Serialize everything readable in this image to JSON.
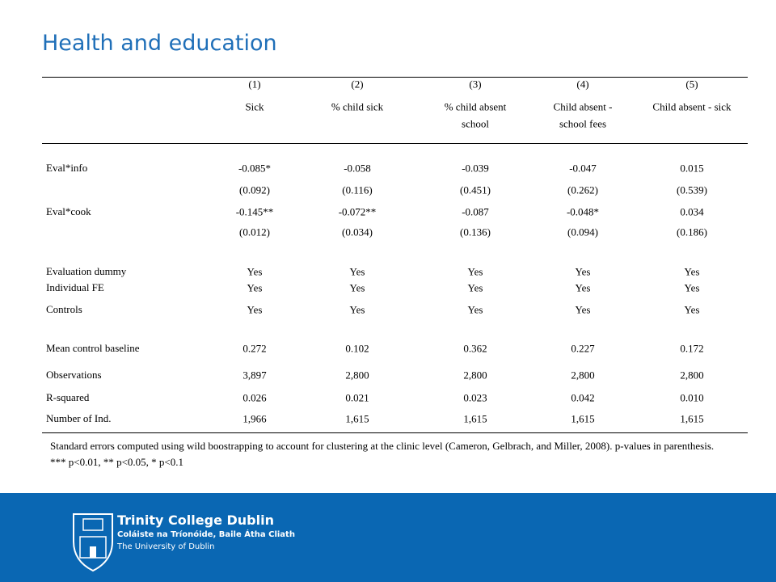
{
  "title": "Health and education",
  "table": {
    "columns": [
      {
        "number": "(1)",
        "name": [
          "Sick"
        ]
      },
      {
        "number": "(2)",
        "name": [
          "% child sick"
        ]
      },
      {
        "number": "(3)",
        "name": [
          "% child absent",
          "school"
        ]
      },
      {
        "number": "(4)",
        "name": [
          "Child absent -",
          "school fees"
        ]
      },
      {
        "number": "(5)",
        "name": [
          "Child absent - sick"
        ]
      }
    ],
    "rows": [
      {
        "label": "Eval*info",
        "cells": [
          "-0.085*",
          "-0.058",
          "-0.039",
          "-0.047",
          "0.015"
        ]
      },
      {
        "cells": [
          "(0.092)",
          "(0.116)",
          "(0.451)",
          "(0.262)",
          "(0.539)"
        ]
      },
      {
        "label": "Eval*cook",
        "cells": [
          "-0.145**",
          "-0.072**",
          "-0.087",
          "-0.048*",
          "0.034"
        ]
      },
      {
        "cells": [
          "(0.012)",
          "(0.034)",
          "(0.136)",
          "(0.094)",
          "(0.186)"
        ]
      },
      {
        "label": "Evaluation dummy",
        "cells": [
          "Yes",
          "Yes",
          "Yes",
          "Yes",
          "Yes"
        ]
      },
      {
        "label": "Individual FE",
        "cells": [
          "Yes",
          "Yes",
          "Yes",
          "Yes",
          "Yes"
        ]
      },
      {
        "label": "Controls",
        "cells": [
          "Yes",
          "Yes",
          "Yes",
          "Yes",
          "Yes"
        ]
      },
      {
        "label": "Mean control baseline",
        "cells": [
          "0.272",
          "0.102",
          "0.362",
          "0.227",
          "0.172"
        ]
      },
      {
        "label": "Observations",
        "cells": [
          "3,897",
          "2,800",
          "2,800",
          "2,800",
          "2,800"
        ]
      },
      {
        "label": "R-squared",
        "cells": [
          "0.026",
          "0.021",
          "0.023",
          "0.042",
          "0.010"
        ]
      },
      {
        "label": "Number of Ind.",
        "cells": [
          "1,966",
          "1,615",
          "1,615",
          "1,615",
          "1,615"
        ]
      }
    ],
    "note": "Standard errors computed using wild boostrapping to account for clustering at the clinic level (Cameron, Gelbrach, and Miller, 2008). p-values in parenthesis. *** p<0.01, ** p<0.05, * p<0.1"
  },
  "footer": {
    "name": "Trinity College Dublin",
    "irish": "Coláiste na Tríonóide, Baile Átha Cliath",
    "sub": "The University of Dublin"
  }
}
